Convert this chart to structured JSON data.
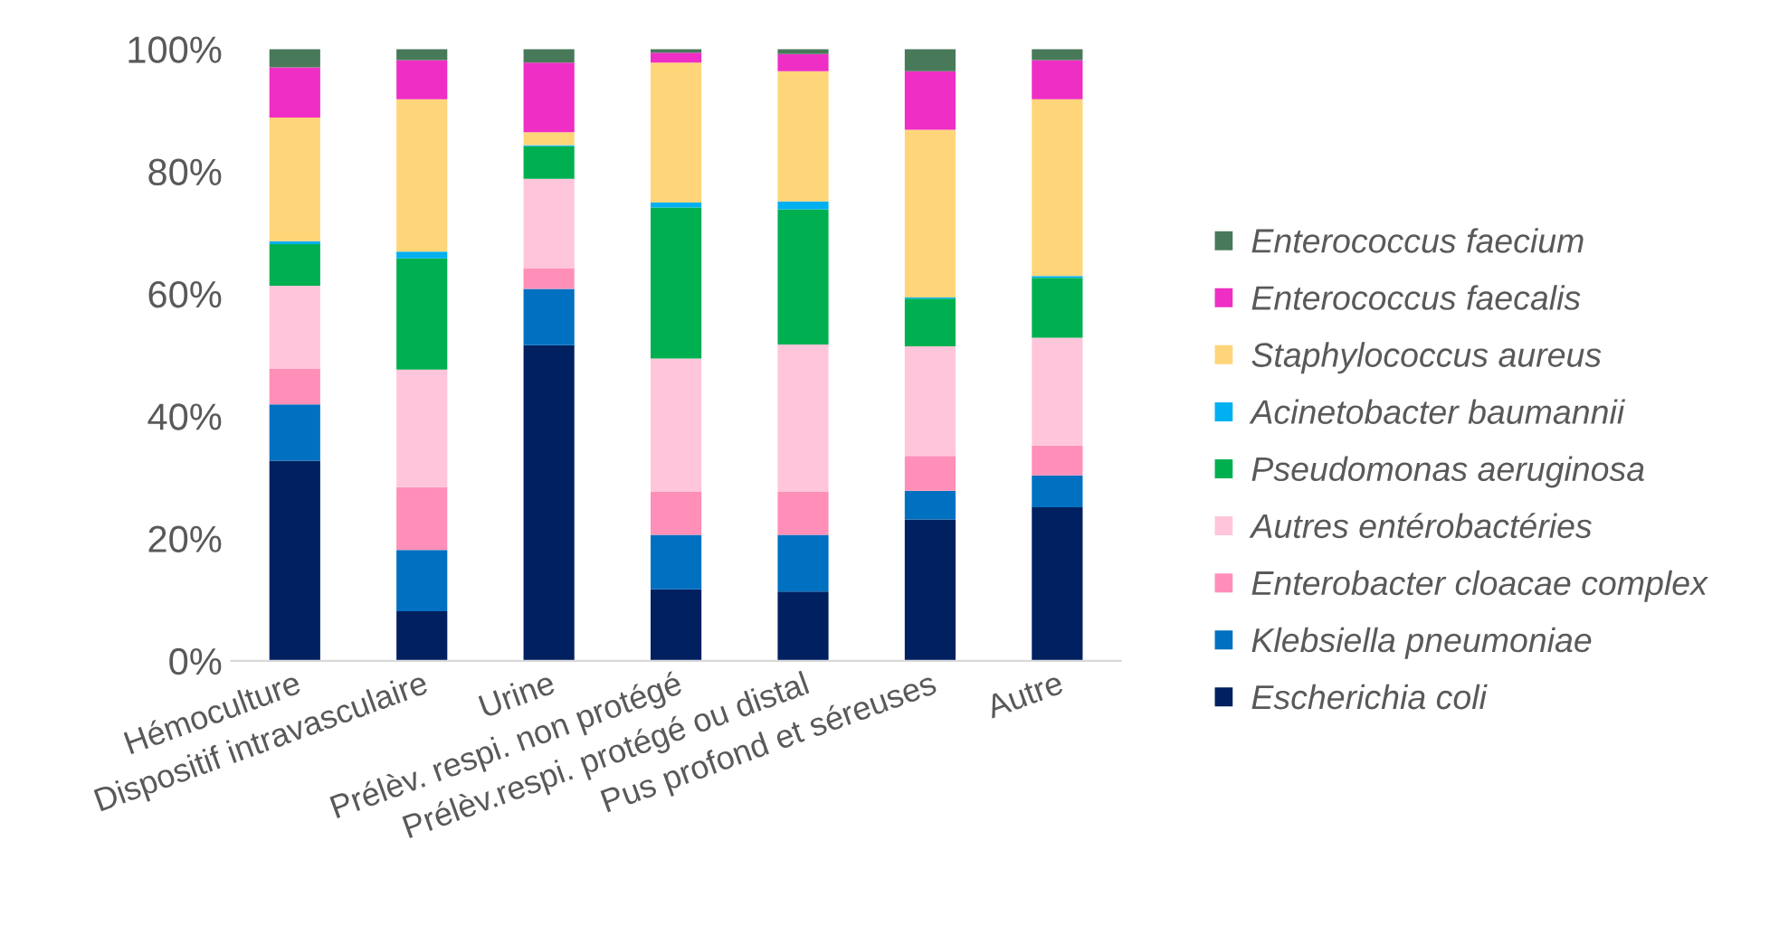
{
  "chart_data": {
    "type": "bar",
    "stacked": true,
    "categories": [
      "Hémoculture",
      "Dispositif intravasculaire",
      "Urine",
      "Prélèv. respi. non protégé",
      "Prélèv.respi. protégé ou distal",
      "Pus profond et séreuses",
      "Autre"
    ],
    "series": [
      {
        "name": "Escherichia coli",
        "color": "#002060",
        "values": [
          32.7,
          8.1,
          51.6,
          11.7,
          11.3,
          23.1,
          25.1
        ]
      },
      {
        "name": "Klebsiella pneumoniae",
        "color": "#0070c0",
        "values": [
          9.2,
          10.0,
          9.2,
          8.9,
          9.3,
          4.7,
          5.2
        ]
      },
      {
        "name": "Enterobacter cloacae complex",
        "color": "#ff8fb8",
        "values": [
          5.9,
          10.3,
          3.4,
          7.0,
          7.0,
          5.7,
          4.9
        ]
      },
      {
        "name": "Autres entérobactéries",
        "color": "#ffc5da",
        "values": [
          13.5,
          19.2,
          14.6,
          21.8,
          24.1,
          17.9,
          17.6
        ]
      },
      {
        "name": "Pseudomonas aeruginosa",
        "color": "#00b050",
        "values": [
          6.8,
          18.2,
          5.3,
          24.7,
          22.1,
          7.8,
          9.8
        ]
      },
      {
        "name": "Acinetobacter baumannii",
        "color": "#00b0f0",
        "values": [
          0.5,
          1.1,
          0.2,
          0.8,
          1.3,
          0.2,
          0.3
        ]
      },
      {
        "name": "Staphylococcus aureus",
        "color": "#ffd57a",
        "values": [
          20.2,
          24.9,
          2.1,
          22.9,
          21.3,
          27.4,
          28.9
        ]
      },
      {
        "name": "Enterococcus faecalis",
        "color": "#ee2ec4",
        "values": [
          8.2,
          6.4,
          11.4,
          1.6,
          2.8,
          9.6,
          6.4
        ]
      },
      {
        "name": "Enterococcus faecium",
        "color": "#487a5a",
        "values": [
          3.0,
          1.8,
          2.2,
          0.6,
          0.8,
          3.6,
          1.8
        ]
      }
    ],
    "ylim": [
      0,
      100
    ],
    "yticks": [
      {
        "value": 0,
        "label": "0%"
      },
      {
        "value": 20,
        "label": "20%"
      },
      {
        "value": 40,
        "label": "40%"
      },
      {
        "value": 60,
        "label": "60%"
      },
      {
        "value": 80,
        "label": "80%"
      },
      {
        "value": 100,
        "label": "100%"
      }
    ],
    "grid": false,
    "legend": "right"
  }
}
